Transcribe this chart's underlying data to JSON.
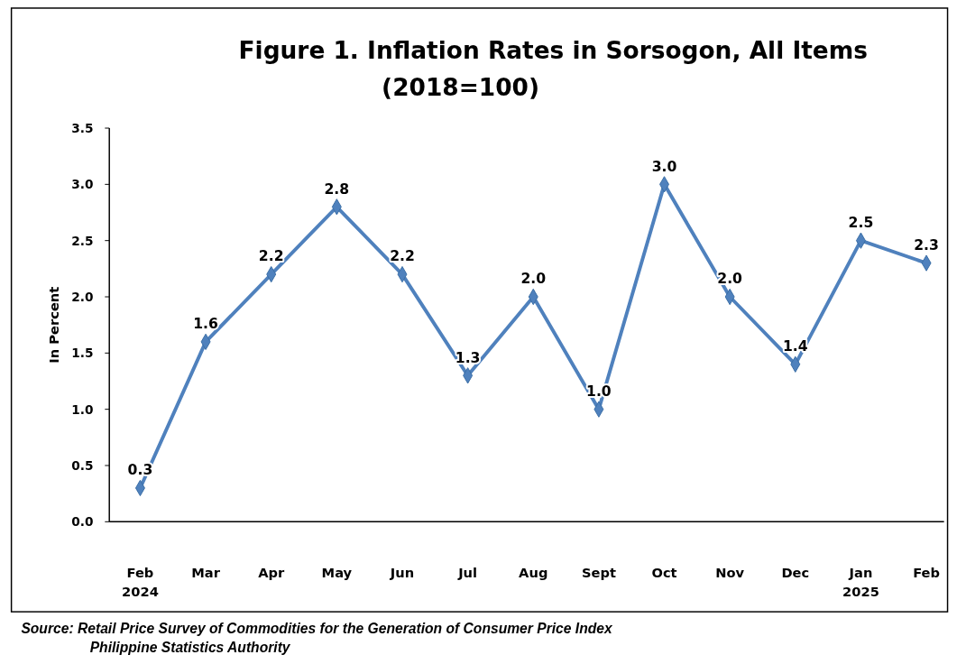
{
  "chart_data": {
    "type": "line",
    "title": "Figure 1. Inflation Rates in Sorsogon, All Items",
    "subtitle": "(2018=100)",
    "ylabel": "In Percent",
    "categories": [
      "Feb 2024",
      "Mar",
      "Apr",
      "May",
      "Jun",
      "Jul",
      "Aug",
      "Sept",
      "Oct",
      "Nov",
      "Dec",
      "Jan 2025",
      "Feb"
    ],
    "series": [
      {
        "color": "#4f81bd",
        "values": [
          0.3,
          1.6,
          2.2,
          2.8,
          2.2,
          1.3,
          2.0,
          1.0,
          3.0,
          2.0,
          1.4,
          2.5,
          2.3
        ],
        "value_labels": [
          "0.3",
          "1.6",
          "2.2",
          "2.8",
          "2.2",
          "1.3",
          "2.0",
          "1.0",
          "3.0",
          "2.0",
          "1.4",
          "2.5",
          "2.3"
        ]
      }
    ],
    "ylim": [
      0,
      3.5
    ],
    "yticks": [
      {
        "value": 0,
        "label": "0.0"
      },
      {
        "value": 0.5,
        "label": "0.5"
      },
      {
        "value": 1,
        "label": "1.0"
      },
      {
        "value": 1.5,
        "label": "1.5"
      },
      {
        "value": 2,
        "label": "2.0"
      },
      {
        "value": 2.5,
        "label": "2.5"
      },
      {
        "value": 3,
        "label": "3.0"
      },
      {
        "value": 3.5,
        "label": "3.5"
      }
    ],
    "grid": false,
    "marker": "diamond",
    "line_style": "solid",
    "annotations": [
      "Source: Retail Price Survey of Commodities for the Generation of Consumer Price Index",
      "Philippine Statistics Authority"
    ]
  }
}
